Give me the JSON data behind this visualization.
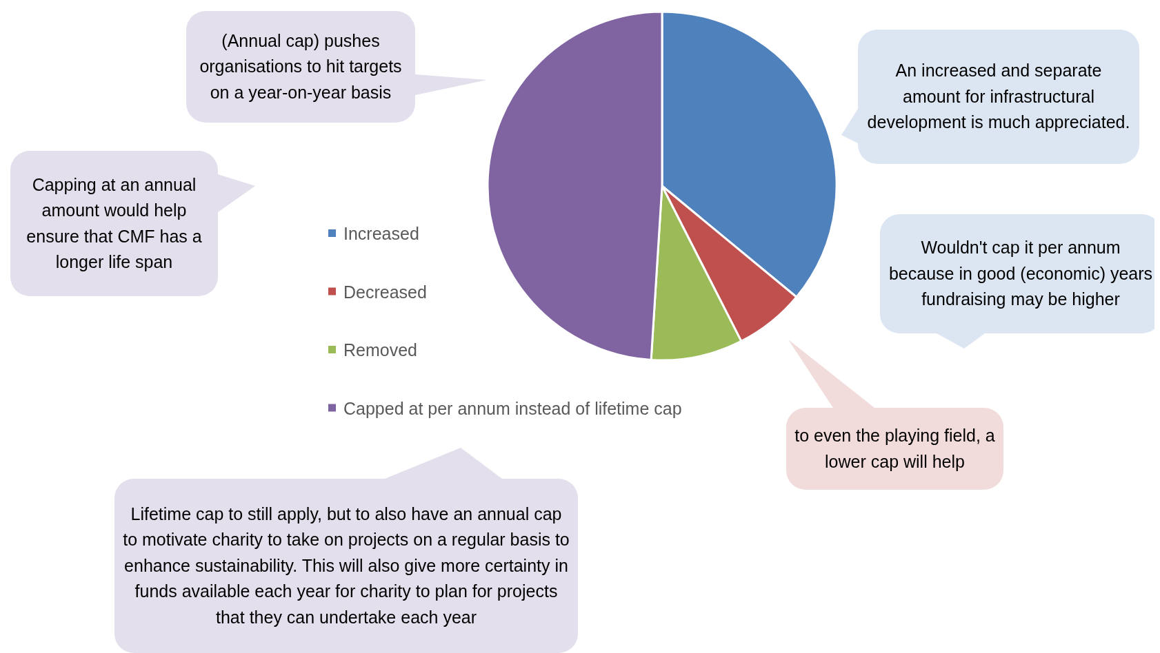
{
  "chart_data": {
    "type": "pie",
    "categories": [
      "Increased",
      "Decreased",
      "Removed",
      "Capped at per annum instead of lifetime cap"
    ],
    "values": [
      36,
      6.5,
      8.5,
      49
    ],
    "colors": [
      "#4f81bd",
      "#c0504d",
      "#9bbb59",
      "#8064a2"
    ],
    "legend": "left",
    "annotations": [
      "(Annual cap) pushes organisations to hit targets on a year-on-year basis",
      "Capping at an annual amount would help ensure that CMF has a longer life span",
      "An increased and separate amount for infrastructural development is much appreciated.",
      "Wouldn't cap it per annum because in good (economic) years fundraising may be higher",
      "to even the playing field, a lower cap will help",
      "Lifetime cap to still apply, but to also have an annual cap to motivate charity to take on projects on a regular basis to enhance sustainability. This will also give more certainty in funds available each year for charity to plan for projects that they can undertake each year"
    ]
  }
}
